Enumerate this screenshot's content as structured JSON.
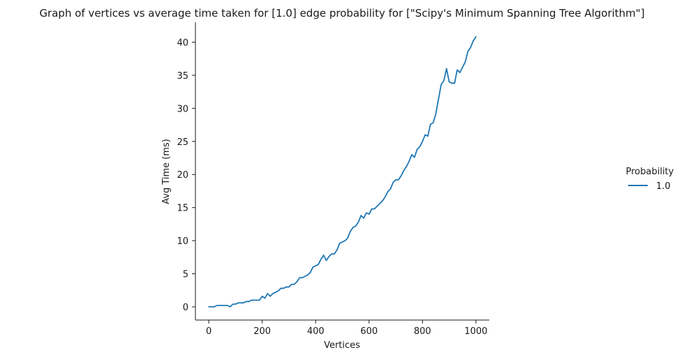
{
  "chart_data": {
    "type": "line",
    "title": "Graph of vertices vs average time taken for [1.0] edge probability for [\"Scipy's Minimum Spanning Tree Algorithm\"]",
    "xlabel": "Vertices",
    "ylabel": "Avg Time (ms)",
    "xlim": [
      -50,
      1050
    ],
    "ylim": [
      -2,
      43
    ],
    "xticks": [
      0,
      200,
      400,
      600,
      800,
      1000
    ],
    "yticks": [
      0,
      5,
      10,
      15,
      20,
      25,
      30,
      35,
      40
    ],
    "grid": false,
    "legend": {
      "title": "Probability",
      "placement": "right"
    },
    "series": [
      {
        "name": "1.0",
        "color": "#1f77b4",
        "x": [
          0,
          10,
          20,
          30,
          40,
          50,
          60,
          70,
          80,
          90,
          100,
          110,
          120,
          130,
          140,
          150,
          160,
          170,
          180,
          190,
          200,
          210,
          220,
          230,
          240,
          250,
          260,
          270,
          280,
          290,
          300,
          310,
          320,
          330,
          340,
          350,
          360,
          370,
          380,
          390,
          400,
          410,
          420,
          430,
          440,
          450,
          460,
          470,
          480,
          490,
          500,
          510,
          520,
          530,
          540,
          550,
          560,
          570,
          580,
          590,
          600,
          610,
          620,
          630,
          640,
          650,
          660,
          670,
          680,
          690,
          700,
          710,
          720,
          730,
          740,
          750,
          760,
          770,
          780,
          790,
          800,
          810,
          820,
          830,
          840,
          850,
          860,
          870,
          880,
          890,
          900,
          910,
          920,
          930,
          940,
          950,
          960,
          970,
          980,
          990,
          1000
        ],
        "y": [
          0.0,
          0.0,
          0.0,
          0.2,
          0.2,
          0.2,
          0.2,
          0.2,
          0.0,
          0.4,
          0.4,
          0.6,
          0.6,
          0.6,
          0.8,
          0.8,
          1.0,
          1.0,
          1.0,
          1.0,
          1.6,
          1.3,
          2.0,
          1.6,
          2.0,
          2.2,
          2.4,
          2.8,
          2.8,
          3.0,
          3.0,
          3.4,
          3.4,
          3.8,
          4.4,
          4.4,
          4.6,
          4.8,
          5.2,
          6.0,
          6.2,
          6.4,
          7.2,
          7.8,
          7.0,
          7.6,
          8.0,
          8.0,
          8.6,
          9.6,
          9.8,
          10.0,
          10.4,
          11.4,
          12.0,
          12.2,
          12.8,
          13.8,
          13.4,
          14.2,
          14.0,
          14.8,
          14.8,
          15.2,
          15.6,
          16.0,
          16.6,
          17.4,
          17.8,
          18.8,
          19.2,
          19.2,
          19.8,
          20.6,
          21.2,
          22.0,
          23.0,
          22.6,
          23.8,
          24.2,
          25.0,
          26.0,
          25.8,
          27.6,
          27.8,
          29.2,
          31.4,
          33.6,
          34.2,
          36.0,
          34.0,
          33.8,
          33.8,
          35.8,
          35.4,
          36.2,
          37.0,
          38.6,
          39.2,
          40.2,
          40.8
        ]
      }
    ]
  }
}
